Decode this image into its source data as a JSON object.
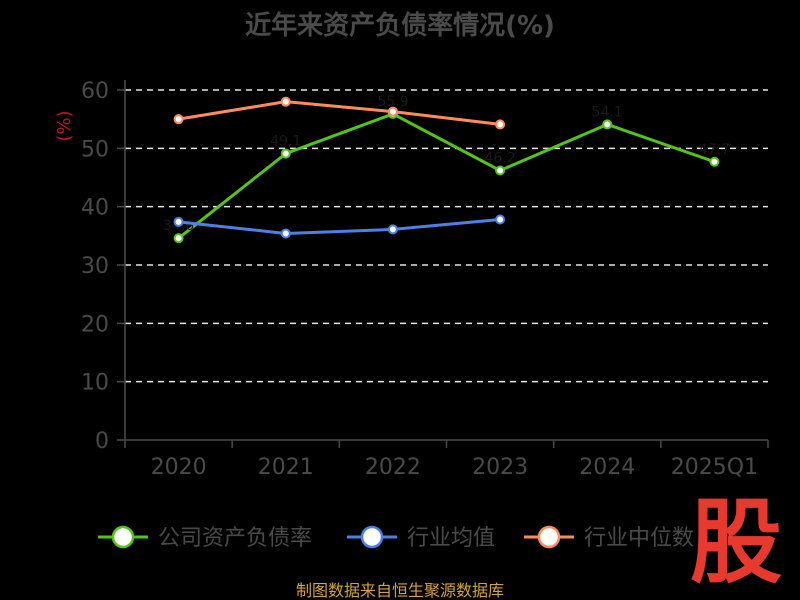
{
  "chart_data": {
    "type": "line",
    "title": "近年来资产负债率情况(%)",
    "ylabel": "(%)",
    "xlabel": "",
    "categories": [
      "2020",
      "2021",
      "2022",
      "2023",
      "2024",
      "2025Q1"
    ],
    "ylim": [
      0,
      60
    ],
    "yticks": [
      0,
      10,
      20,
      30,
      40,
      50,
      60
    ],
    "grid": true,
    "legend_position": "bottom",
    "series": [
      {
        "name": "公司资产负债率",
        "color": "#52c41a",
        "values": [
          34.6,
          49.1,
          55.9,
          46.2,
          54.1,
          47.7
        ]
      },
      {
        "name": "行业均值",
        "color": "#4e7fe6",
        "values": [
          37.4,
          35.4,
          36.1,
          37.8,
          null,
          null
        ]
      },
      {
        "name": "行业中位数",
        "color": "#ff8c5a",
        "values": [
          55.0,
          58.0,
          56.3,
          54.1,
          null,
          null
        ]
      }
    ]
  },
  "footer": {
    "source": "制图数据来自恒生聚源数据库"
  },
  "watermark": {
    "text": "股"
  }
}
